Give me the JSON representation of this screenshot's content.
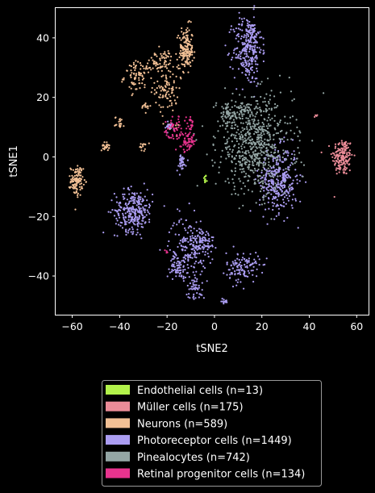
{
  "chart_data": {
    "type": "scatter",
    "title": "",
    "xlabel": "tSNE2",
    "ylabel": "tSNE1",
    "xlim": [
      -67,
      65
    ],
    "ylim": [
      -53,
      50
    ],
    "x_ticks": [
      -60,
      -40,
      -20,
      0,
      20,
      40,
      60
    ],
    "y_ticks": [
      -40,
      -20,
      0,
      20,
      40
    ],
    "x_tick_labels": [
      "−60",
      "−40",
      "−20",
      "0",
      "20",
      "40",
      "60"
    ],
    "y_tick_labels": [
      "−40",
      "−20",
      "0",
      "20",
      "40"
    ],
    "grid": false,
    "background": "#000000",
    "legend_position": "below plot",
    "series": [
      {
        "name": "Endothelial cells (n=13)",
        "color": "#b2f24a",
        "clusters": [
          {
            "x": -4,
            "y": -7.5,
            "sx": 0.3,
            "sy": 0.8,
            "n": 13
          }
        ]
      },
      {
        "name": "Müller cells (n=175)",
        "color": "#eb8c98",
        "clusters": [
          {
            "x": 54,
            "y": 0,
            "sx": 2.2,
            "sy": 3.2,
            "n": 170
          },
          {
            "x": 43,
            "y": 14,
            "sx": 0.5,
            "sy": 0.4,
            "n": 5
          }
        ]
      },
      {
        "name": "Neurons (n=589)",
        "color": "#f2c095",
        "clusters": [
          {
            "x": -12,
            "y": 36,
            "sx": 1.5,
            "sy": 4,
            "n": 80
          },
          {
            "x": -20,
            "y": 23,
            "sx": 2.5,
            "sy": 4,
            "n": 90
          },
          {
            "x": -23,
            "y": 32,
            "sx": 3,
            "sy": 2,
            "n": 60
          },
          {
            "x": -32,
            "y": 27,
            "sx": 3,
            "sy": 2.5,
            "n": 80
          },
          {
            "x": -29,
            "y": 17,
            "sx": 1,
            "sy": 0.8,
            "n": 15
          },
          {
            "x": -40,
            "y": 11.5,
            "sx": 1,
            "sy": 1,
            "n": 20
          },
          {
            "x": -30,
            "y": 3.5,
            "sx": 0.8,
            "sy": 0.8,
            "n": 15
          },
          {
            "x": -46,
            "y": 3.5,
            "sx": 0.8,
            "sy": 0.7,
            "n": 25
          },
          {
            "x": -58,
            "y": -8,
            "sx": 1.3,
            "sy": 2.5,
            "n": 110
          },
          {
            "x": -18,
            "y": 10,
            "sx": 1.5,
            "sy": 1,
            "n": 14
          },
          {
            "x": -12,
            "y": 36,
            "sx": 1.8,
            "sy": 3,
            "n": 80
          }
        ]
      },
      {
        "name": "Photoreceptor cells (n=1449)",
        "color": "#ab9df2",
        "clusters": [
          {
            "x": 14,
            "y": 36,
            "sx": 3,
            "sy": 6,
            "n": 260
          },
          {
            "x": -34,
            "y": -18,
            "sx": 4,
            "sy": 3.5,
            "n": 280
          },
          {
            "x": 27,
            "y": -8,
            "sx": 4,
            "sy": 5.5,
            "n": 330
          },
          {
            "x": -11,
            "y": -30,
            "sx": 4,
            "sy": 5,
            "n": 160
          },
          {
            "x": -5,
            "y": -29,
            "sx": 2.5,
            "sy": 2.5,
            "n": 80
          },
          {
            "x": 12,
            "y": -37,
            "sx": 3.5,
            "sy": 2.5,
            "n": 120
          },
          {
            "x": -8,
            "y": -44,
            "sx": 2,
            "sy": 2,
            "n": 50
          },
          {
            "x": -14,
            "y": -2,
            "sx": 1,
            "sy": 1.5,
            "n": 40
          },
          {
            "x": -19,
            "y": 10,
            "sx": 1.5,
            "sy": 0.8,
            "n": 20
          },
          {
            "x": 4,
            "y": -48.5,
            "sx": 0.8,
            "sy": 0.5,
            "n": 15
          },
          {
            "x": -15,
            "y": -37,
            "sx": 1.8,
            "sy": 1.8,
            "n": 60
          },
          {
            "x": 16,
            "y": 42,
            "sx": 1.5,
            "sy": 1.5,
            "n": 34
          }
        ]
      },
      {
        "name": "Pinealocytes (n=742)",
        "color": "#94a6a5",
        "clusters": [
          {
            "x": 17,
            "y": 4,
            "sx": 8,
            "sy": 8,
            "n": 640
          },
          {
            "x": 6,
            "y": 14,
            "sx": 1.8,
            "sy": 2,
            "n": 70
          },
          {
            "x": 12,
            "y": 16,
            "sx": 2,
            "sy": 1,
            "n": 32
          }
        ]
      },
      {
        "name": "Retinal progenitor cells (n=134)",
        "color": "#e8338e",
        "clusters": [
          {
            "x": -11,
            "y": 5,
            "sx": 1.5,
            "sy": 1.5,
            "n": 60
          },
          {
            "x": -17,
            "y": 9,
            "sx": 2,
            "sy": 2.5,
            "n": 50
          },
          {
            "x": -10,
            "y": 11,
            "sx": 1,
            "sy": 1,
            "n": 20
          },
          {
            "x": -20,
            "y": -32,
            "sx": 0.3,
            "sy": 0.5,
            "n": 4
          }
        ]
      }
    ]
  }
}
